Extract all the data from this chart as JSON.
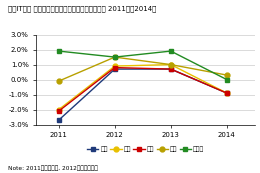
{
  "title": "国内IT市場 主要産業の前年比成長率の推移予測： 2011年～2014年",
  "note": "Note: 2011年は実績値, 2012年以降は予測",
  "x": [
    2011,
    2012,
    2013,
    2014
  ],
  "series": [
    {
      "name": "金融",
      "values": [
        -2.7,
        0.7,
        0.7,
        -0.9
      ],
      "color": "#1f3a7a",
      "marker": "s",
      "markersize": 3.5
    },
    {
      "name": "製造",
      "values": [
        -2.0,
        0.9,
        1.0,
        -0.9
      ],
      "color": "#e8c000",
      "marker": "o",
      "markersize": 3.5
    },
    {
      "name": "流通",
      "values": [
        -2.1,
        0.8,
        0.7,
        -0.9
      ],
      "color": "#cc0000",
      "marker": "s",
      "markersize": 3.5
    },
    {
      "name": "医療",
      "values": [
        -0.1,
        1.5,
        1.0,
        0.3
      ],
      "color": "#b8a000",
      "marker": "o",
      "markersize": 3.5
    },
    {
      "name": "官公庁",
      "values": [
        1.9,
        1.5,
        1.9,
        0.0
      ],
      "color": "#228B22",
      "marker": "s",
      "markersize": 3.5
    }
  ],
  "ylim": [
    -3.0,
    3.0
  ],
  "yticks": [
    -3.0,
    -2.0,
    -1.0,
    0.0,
    1.0,
    2.0,
    3.0
  ],
  "ytick_labels": [
    "-3.0%",
    "-2.0%",
    "-1.0%",
    "0.0%",
    "1.0%",
    "2.0%",
    "3.0%"
  ],
  "background_color": "#ffffff",
  "plot_bg_color": "#ffffff",
  "grid_color": "#cccccc",
  "title_fontsize": 5.0,
  "tick_fontsize": 5.0,
  "legend_fontsize": 4.5,
  "note_fontsize": 4.2
}
